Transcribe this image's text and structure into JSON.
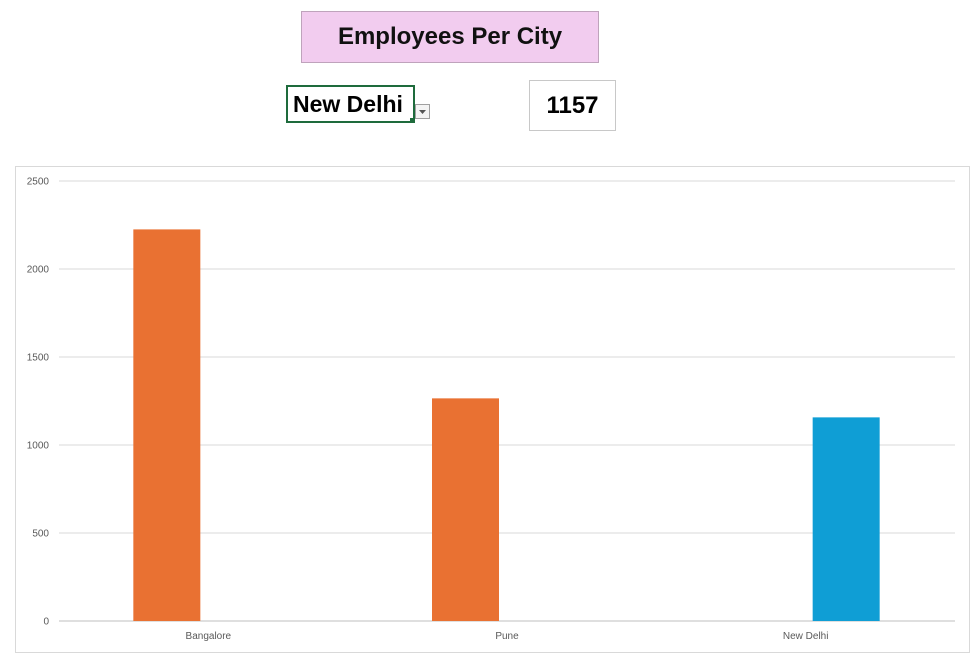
{
  "title": "Employees Per City",
  "selector": {
    "selected_city": "New Delhi",
    "dropdown_icon": "chevron-down-icon"
  },
  "selected_value": "1157",
  "colors": {
    "default_bar": "#e97132",
    "highlight_bar": "#0f9ed5",
    "title_bg": "#f2ccef",
    "grid": "#d9d9d9"
  },
  "chart_data": {
    "type": "bar",
    "title": "",
    "xlabel": "",
    "ylabel": "",
    "categories": [
      "Bangalore",
      "Pune",
      "New Delhi"
    ],
    "values": [
      2225,
      1265,
      1157
    ],
    "highlighted": "New Delhi",
    "ylim": [
      0,
      2500
    ],
    "yticks": [
      0,
      500,
      1000,
      1500,
      2000,
      2500
    ],
    "grid": true,
    "legend": "none"
  }
}
